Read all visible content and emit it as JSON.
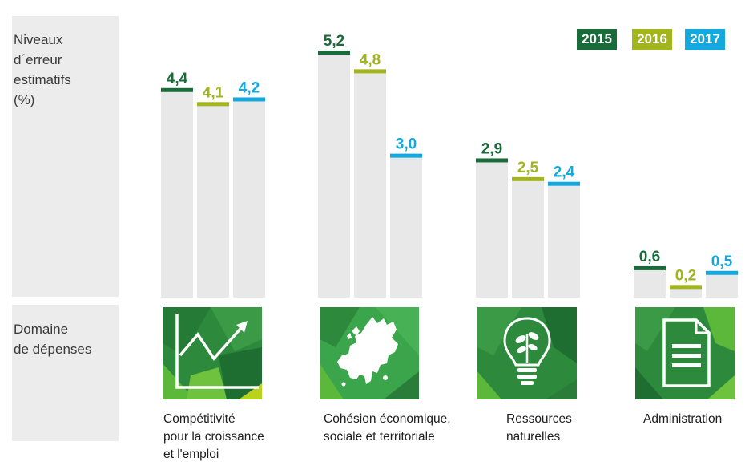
{
  "ylabel": "Niveaux\nd´erreur\nestimatifs\n(%)",
  "section_label": "Domaine\nde dépenses",
  "chart_data": {
    "type": "bar",
    "categories": [
      "Compétitivité\npour la croissance\net l'emploi",
      "Cohésion économique,\nsociale et territoriale",
      "Ressources\nnaturelles",
      "Administration"
    ],
    "series": [
      {
        "name": "2015",
        "values": [
          4.4,
          5.2,
          2.9,
          0.6
        ],
        "labels": [
          "4,4",
          "5,2",
          "2,9",
          "0,6"
        ],
        "color": "#1a6b3a"
      },
      {
        "name": "2016",
        "values": [
          4.1,
          4.8,
          2.5,
          0.2
        ],
        "labels": [
          "4,1",
          "4,8",
          "2,5",
          "0,2"
        ],
        "color": "#a3b51c"
      },
      {
        "name": "2017",
        "values": [
          4.2,
          3.0,
          2.4,
          0.5
        ],
        "labels": [
          "4,2",
          "3,0",
          "2,4",
          "0,5"
        ],
        "color": "#11a9df"
      }
    ],
    "ylim": [
      0,
      5.2
    ],
    "legend_position": "top-right",
    "category_icons": [
      "chart-growth-icon",
      "europe-map-icon",
      "plant-bulb-icon",
      "document-icon"
    ]
  }
}
